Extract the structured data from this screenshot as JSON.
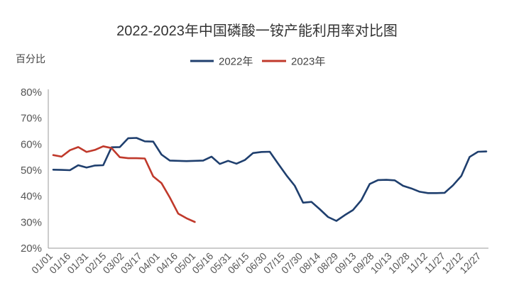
{
  "chart_data": {
    "type": "line",
    "title": "2022-2023年中国磷酸一铵产能利用率对比图",
    "ylabel": "百分比",
    "xlabel": "",
    "ylim": [
      20,
      80
    ],
    "yticks": [
      "20%",
      "30%",
      "40%",
      "50%",
      "60%",
      "70%",
      "80%"
    ],
    "x_tick_labels": [
      "01/01",
      "01/16",
      "01/31",
      "02/15",
      "03/02",
      "03/17",
      "04/01",
      "04/16",
      "05/01",
      "05/16",
      "05/31",
      "06/15",
      "06/30",
      "07/15",
      "07/30",
      "08/14",
      "08/29",
      "09/13",
      "09/28",
      "10/13",
      "10/28",
      "11/12",
      "11/27",
      "12/12",
      "12/27"
    ],
    "grid": false,
    "legend_position": "top-center",
    "series": [
      {
        "name": "2022年",
        "color": "#1f3f6e",
        "points": [
          [
            "01/01",
            50.2
          ],
          [
            "01/08",
            50.1
          ],
          [
            "01/15",
            50.0
          ],
          [
            "01/22",
            51.9
          ],
          [
            "01/29",
            51.0
          ],
          [
            "02/05",
            51.8
          ],
          [
            "02/12",
            51.9
          ],
          [
            "02/19",
            58.8
          ],
          [
            "02/26",
            58.9
          ],
          [
            "03/05",
            62.3
          ],
          [
            "03/12",
            62.4
          ],
          [
            "03/19",
            61.1
          ],
          [
            "03/26",
            61.0
          ],
          [
            "04/02",
            56.0
          ],
          [
            "04/09",
            53.7
          ],
          [
            "04/16",
            53.6
          ],
          [
            "04/23",
            53.5
          ],
          [
            "04/30",
            53.6
          ],
          [
            "05/07",
            53.7
          ],
          [
            "05/14",
            55.2
          ],
          [
            "05/21",
            52.4
          ],
          [
            "05/28",
            53.6
          ],
          [
            "06/04",
            52.5
          ],
          [
            "06/11",
            53.9
          ],
          [
            "06/18",
            56.6
          ],
          [
            "06/25",
            57.0
          ],
          [
            "07/02",
            57.1
          ],
          [
            "07/09",
            52.5
          ],
          [
            "07/16",
            48.0
          ],
          [
            "07/23",
            44.0
          ],
          [
            "07/30",
            37.5
          ],
          [
            "08/06",
            37.8
          ],
          [
            "08/13",
            35.0
          ],
          [
            "08/20",
            32.0
          ],
          [
            "08/27",
            30.5
          ],
          [
            "09/03",
            32.7
          ],
          [
            "09/10",
            34.7
          ],
          [
            "09/17",
            38.5
          ],
          [
            "09/24",
            44.7
          ],
          [
            "10/01",
            46.2
          ],
          [
            "10/08",
            46.3
          ],
          [
            "10/15",
            46.1
          ],
          [
            "10/22",
            44.0
          ],
          [
            "10/29",
            43.0
          ],
          [
            "11/05",
            41.7
          ],
          [
            "11/12",
            41.2
          ],
          [
            "11/19",
            41.2
          ],
          [
            "11/26",
            41.3
          ],
          [
            "12/03",
            44.2
          ],
          [
            "12/10",
            47.8
          ],
          [
            "12/17",
            55.1
          ],
          [
            "12/24",
            57.1
          ],
          [
            "12/31",
            57.2
          ]
        ]
      },
      {
        "name": "2023年",
        "color": "#c0392b",
        "points": [
          [
            "01/01",
            55.8
          ],
          [
            "01/08",
            55.2
          ],
          [
            "01/15",
            57.7
          ],
          [
            "01/22",
            58.9
          ],
          [
            "01/29",
            57.0
          ],
          [
            "02/05",
            57.8
          ],
          [
            "02/12",
            59.2
          ],
          [
            "02/19",
            58.5
          ],
          [
            "02/26",
            55.0
          ],
          [
            "03/05",
            54.6
          ],
          [
            "03/12",
            54.6
          ],
          [
            "03/19",
            54.5
          ],
          [
            "03/26",
            47.6
          ],
          [
            "04/02",
            45.0
          ],
          [
            "04/09",
            39.5
          ],
          [
            "04/16",
            33.3
          ],
          [
            "04/23",
            31.5
          ],
          [
            "04/30",
            30.1
          ]
        ]
      }
    ]
  }
}
